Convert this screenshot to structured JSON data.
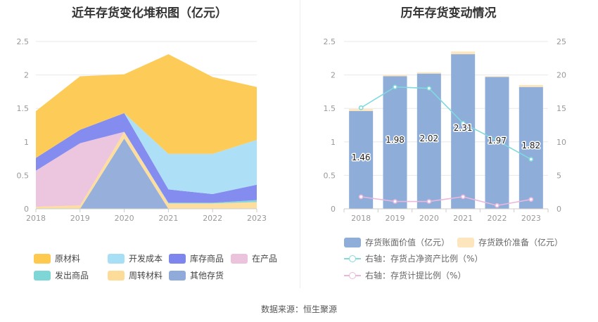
{
  "source": "数据来源：恒生聚源",
  "chart_data": [
    {
      "type": "area",
      "stacked": true,
      "title": "近年存货变化堆积图（亿元）",
      "categories": [
        "2018",
        "2019",
        "2020",
        "2021",
        "2022",
        "2023"
      ],
      "ylim": [
        0,
        2.5
      ],
      "yticks": [
        "0",
        "0.5",
        "1",
        "1.5",
        "2",
        "2.5"
      ],
      "series": [
        {
          "name": "其他存货",
          "color": "#90abd9",
          "values": [
            0.0,
            0.0,
            1.05,
            0.0,
            0.0,
            0.0
          ]
        },
        {
          "name": "周转材料",
          "color": "#fddc9a",
          "values": [
            0.03,
            0.05,
            0.1,
            0.08,
            0.08,
            0.1
          ]
        },
        {
          "name": "发出商品",
          "color": "#7fd6d6",
          "values": [
            0.0,
            0.0,
            0.0,
            0.01,
            0.01,
            0.03
          ]
        },
        {
          "name": "在产品",
          "color": "#ebc3dc",
          "values": [
            0.54,
            0.93,
            0.0,
            0.0,
            0.0,
            0.0
          ]
        },
        {
          "name": "库存商品",
          "color": "#7e86ee",
          "values": [
            0.19,
            0.2,
            0.28,
            0.2,
            0.13,
            0.23
          ]
        },
        {
          "name": "开发成本",
          "color": "#a9def7",
          "values": [
            0.0,
            0.0,
            0.0,
            0.53,
            0.6,
            0.67
          ]
        },
        {
          "name": "原材料",
          "color": "#fdc94f",
          "values": [
            0.7,
            0.8,
            0.58,
            1.49,
            1.15,
            0.79
          ]
        }
      ],
      "legend_order": [
        "原材料",
        "开发成本",
        "库存商品",
        "在产品",
        "发出商品",
        "周转材料",
        "其他存货"
      ]
    },
    {
      "type": "bar+line",
      "title": "历年存货变动情况",
      "categories": [
        "2018",
        "2019",
        "2020",
        "2021",
        "2022",
        "2023"
      ],
      "ylim_left": [
        0,
        2.5
      ],
      "yticks_left": [
        "0",
        "0.5",
        "1",
        "1.5",
        "2",
        "2.5"
      ],
      "ylim_right": [
        0,
        25
      ],
      "yticks_right": [
        "0",
        "5",
        "10",
        "15",
        "20",
        "25"
      ],
      "bars": [
        {
          "name": "存货账面价值（亿元）",
          "color": "#8eadd9",
          "values": [
            1.46,
            1.98,
            2.02,
            2.31,
            1.97,
            1.82
          ],
          "labels": [
            "1.46",
            "1.98",
            "2.02",
            "2.31",
            "1.97",
            "1.82"
          ]
        },
        {
          "name": "存货跌价准备（亿元）",
          "color": "#fde5bd",
          "values": [
            0.03,
            0.02,
            0.02,
            0.04,
            0.01,
            0.03
          ]
        }
      ],
      "lines": [
        {
          "name": "右轴：存货占净资产比例（%）",
          "color": "#7fd9dd",
          "values": [
            15.1,
            18.2,
            18.0,
            12.8,
            10.2,
            7.4
          ]
        },
        {
          "name": "右轴：存货计提比例（%）",
          "color": "#ebb7dd",
          "values": [
            1.8,
            1.1,
            1.1,
            1.8,
            0.5,
            1.4
          ]
        }
      ]
    }
  ]
}
